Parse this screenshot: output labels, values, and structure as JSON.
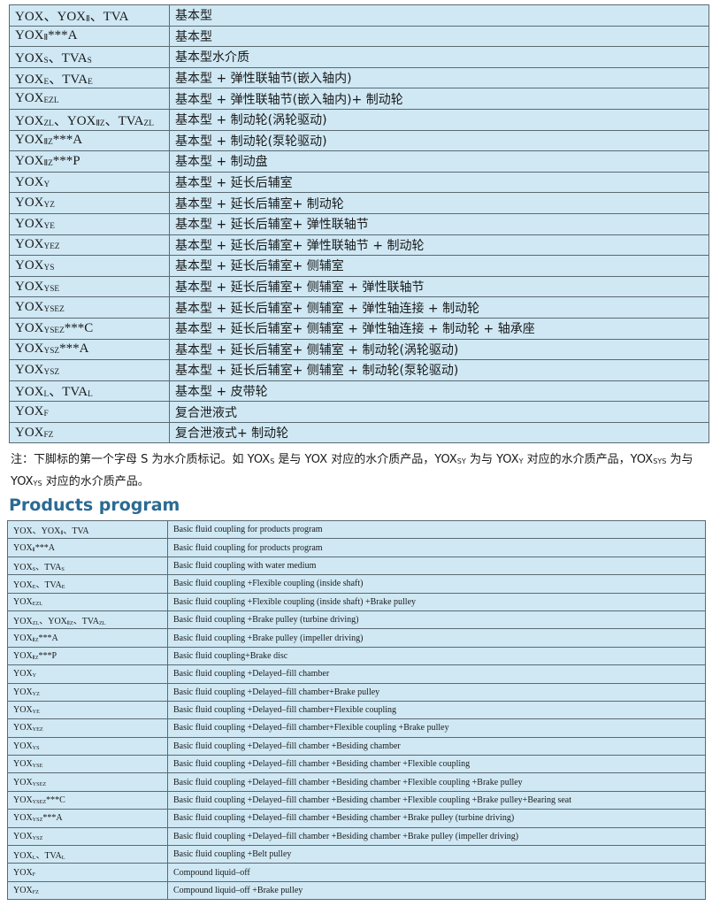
{
  "table1": {
    "rows": [
      [
        [
          "YOX、YOX",
          {
            "sub": "Ⅱ"
          },
          "、TVA"
        ],
        "基本型"
      ],
      [
        [
          "YOX",
          {
            "sub": "Ⅱ"
          },
          "***A"
        ],
        "基本型"
      ],
      [
        [
          "YOX",
          {
            "sub": "S"
          },
          "、TVA",
          {
            "sub": "S"
          }
        ],
        "基本型水介质"
      ],
      [
        [
          "YOX",
          {
            "sub": "E"
          },
          "、TVA",
          {
            "sub": "E"
          }
        ],
        "基本型 + 弹性联轴节(嵌入轴内)"
      ],
      [
        [
          "YOX",
          {
            "sub": "EZL"
          }
        ],
        "基本型 + 弹性联轴节(嵌入轴内)+ 制动轮"
      ],
      [
        [
          "YOX",
          {
            "sub": "ZL"
          },
          "、YOX",
          {
            "sub": "ⅡZ"
          },
          "、TVA",
          {
            "sub": "ZL"
          }
        ],
        "基本型 + 制动轮(涡轮驱动)"
      ],
      [
        [
          "YOX",
          {
            "sub": "ⅡZ"
          },
          "***A"
        ],
        "基本型 + 制动轮(泵轮驱动)"
      ],
      [
        [
          "YOX",
          {
            "sub": "ⅡZ"
          },
          "***P"
        ],
        "基本型 + 制动盘"
      ],
      [
        [
          "YOX",
          {
            "sub": "Y"
          }
        ],
        "基本型 + 延长后辅室"
      ],
      [
        [
          "YOX",
          {
            "sub": "YZ"
          }
        ],
        "基本型 + 延长后辅室+ 制动轮"
      ],
      [
        [
          "YOX",
          {
            "sub": "YE"
          }
        ],
        "基本型 + 延长后辅室+ 弹性联轴节"
      ],
      [
        [
          "YOX",
          {
            "sub": "YEZ"
          }
        ],
        "基本型 + 延长后辅室+ 弹性联轴节 + 制动轮"
      ],
      [
        [
          "YOX",
          {
            "sub": "YS"
          }
        ],
        "基本型 + 延长后辅室+ 侧辅室"
      ],
      [
        [
          "YOX",
          {
            "sub": "YSE"
          }
        ],
        "基本型 + 延长后辅室+ 侧辅室 + 弹性联轴节"
      ],
      [
        [
          "YOX",
          {
            "sub": "YSEZ"
          }
        ],
        "基本型 + 延长后辅室+ 侧辅室 + 弹性轴连接 + 制动轮"
      ],
      [
        [
          "YOX",
          {
            "sub": "YSEZ"
          },
          "***C"
        ],
        "基本型 + 延长后辅室+ 侧辅室 + 弹性轴连接 + 制动轮 + 轴承座"
      ],
      [
        [
          "YOX",
          {
            "sub": "YSZ"
          },
          "***A"
        ],
        "基本型 + 延长后辅室+ 侧辅室 + 制动轮(涡轮驱动)"
      ],
      [
        [
          "YOX",
          {
            "sub": "YSZ"
          }
        ],
        "基本型 + 延长后辅室+ 侧辅室 + 制动轮(泵轮驱动)"
      ],
      [
        [
          "YOX",
          {
            "sub": "L"
          },
          "、TVA",
          {
            "sub": "L"
          }
        ],
        "基本型 + 皮带轮"
      ],
      [
        [
          "YOX",
          {
            "sub": "F"
          }
        ],
        "复合泄液式"
      ],
      [
        [
          "YOX",
          {
            "sub": "FZ"
          }
        ],
        "复合泄液式+ 制动轮"
      ]
    ]
  },
  "note": [
    "注：下脚标的第一个字母 S 为水介质标记。如 YOX",
    {
      "sub": "S"
    },
    " 是与 YOX 对应的水介质产品，YOX",
    {
      "sub": "SY"
    },
    " 为与 YOX",
    {
      "sub": "Y"
    },
    " 对应的水介质产品，YOX",
    {
      "sub": "SYS"
    },
    " 为与 YOX",
    {
      "sub": "YS"
    },
    " 对应的水介质产品。"
  ],
  "heading": "Products program",
  "table2": {
    "rows": [
      [
        [
          "YOX、YOX",
          {
            "sub": "Ⅱ"
          },
          "、TVA"
        ],
        "Basic fluid coupling for products program"
      ],
      [
        [
          "YOX",
          {
            "sub": "Ⅱ"
          },
          "***A"
        ],
        "Basic fluid coupling for products program"
      ],
      [
        [
          "YOX",
          {
            "sub": "S"
          },
          "、TVA",
          {
            "sub": "S"
          }
        ],
        "Basic fluid coupling with water medium"
      ],
      [
        [
          "YOX",
          {
            "sub": "E"
          },
          "、TVA",
          {
            "sub": "E"
          }
        ],
        "Basic fluid coupling +Flexible coupling (inside shaft)"
      ],
      [
        [
          "YOX",
          {
            "sub": "EZL"
          }
        ],
        "Basic fluid coupling +Flexible coupling (inside shaft) +Brake pulley"
      ],
      [
        [
          "YOX",
          {
            "sub": "ZL"
          },
          "、YOX",
          {
            "sub": "ⅡZ"
          },
          "、TVA",
          {
            "sub": "ZL"
          }
        ],
        "Basic fluid coupling +Brake pulley (turbine driving)"
      ],
      [
        [
          "YOX",
          {
            "sub": "ⅡZ"
          },
          "***A"
        ],
        "Basic fluid coupling +Brake pulley (impeller driving)"
      ],
      [
        [
          "YOX",
          {
            "sub": "ⅡZ"
          },
          "***P"
        ],
        "Basic fluid coupling+Brake disc"
      ],
      [
        [
          "YOX",
          {
            "sub": "Y"
          }
        ],
        "Basic fluid coupling +Delayed–fill chamber"
      ],
      [
        [
          "YOX",
          {
            "sub": "YZ"
          }
        ],
        "Basic fluid coupling +Delayed–fill chamber+Brake pulley"
      ],
      [
        [
          "YOX",
          {
            "sub": "YE"
          }
        ],
        "Basic fluid coupling +Delayed–fill chamber+Flexible coupling"
      ],
      [
        [
          "YOX",
          {
            "sub": "YEZ"
          }
        ],
        "Basic fluid coupling +Delayed–fill chamber+Flexible coupling +Brake pulley"
      ],
      [
        [
          "YOX",
          {
            "sub": "YS"
          }
        ],
        "Basic fluid coupling +Delayed–fill chamber +Besiding chamber"
      ],
      [
        [
          "YOX",
          {
            "sub": "YSE"
          }
        ],
        "Basic fluid coupling +Delayed–fill chamber +Besiding chamber +Flexible coupling"
      ],
      [
        [
          "YOX",
          {
            "sub": "YSEZ"
          }
        ],
        "Basic fluid coupling +Delayed–fill chamber +Besiding chamber +Flexible coupling +Brake pulley"
      ],
      [
        [
          "YOX",
          {
            "sub": "YSEZ"
          },
          "***C"
        ],
        "Basic fluid coupling +Delayed–fill chamber +Besiding chamber +Flexible coupling +Brake pulley+Bearing seat"
      ],
      [
        [
          "YOX",
          {
            "sub": "YSZ"
          },
          "***A"
        ],
        "Basic fluid coupling +Delayed–fill chamber +Besiding chamber +Brake pulley (turbine driving)"
      ],
      [
        [
          "YOX",
          {
            "sub": "YSZ"
          }
        ],
        "Basic fluid coupling +Delayed–fill chamber +Besiding chamber +Brake pulley (impeller driving)"
      ],
      [
        [
          "YOX",
          {
            "sub": "L"
          },
          "、TVA",
          {
            "sub": "L"
          }
        ],
        "Basic fluid coupling +Belt pulley"
      ],
      [
        [
          "YOX",
          {
            "sub": "F"
          }
        ],
        "Compound liquid–off"
      ],
      [
        [
          "YOX",
          {
            "sub": "FZ"
          }
        ],
        "Compound liquid–off +Brake pulley"
      ]
    ]
  }
}
